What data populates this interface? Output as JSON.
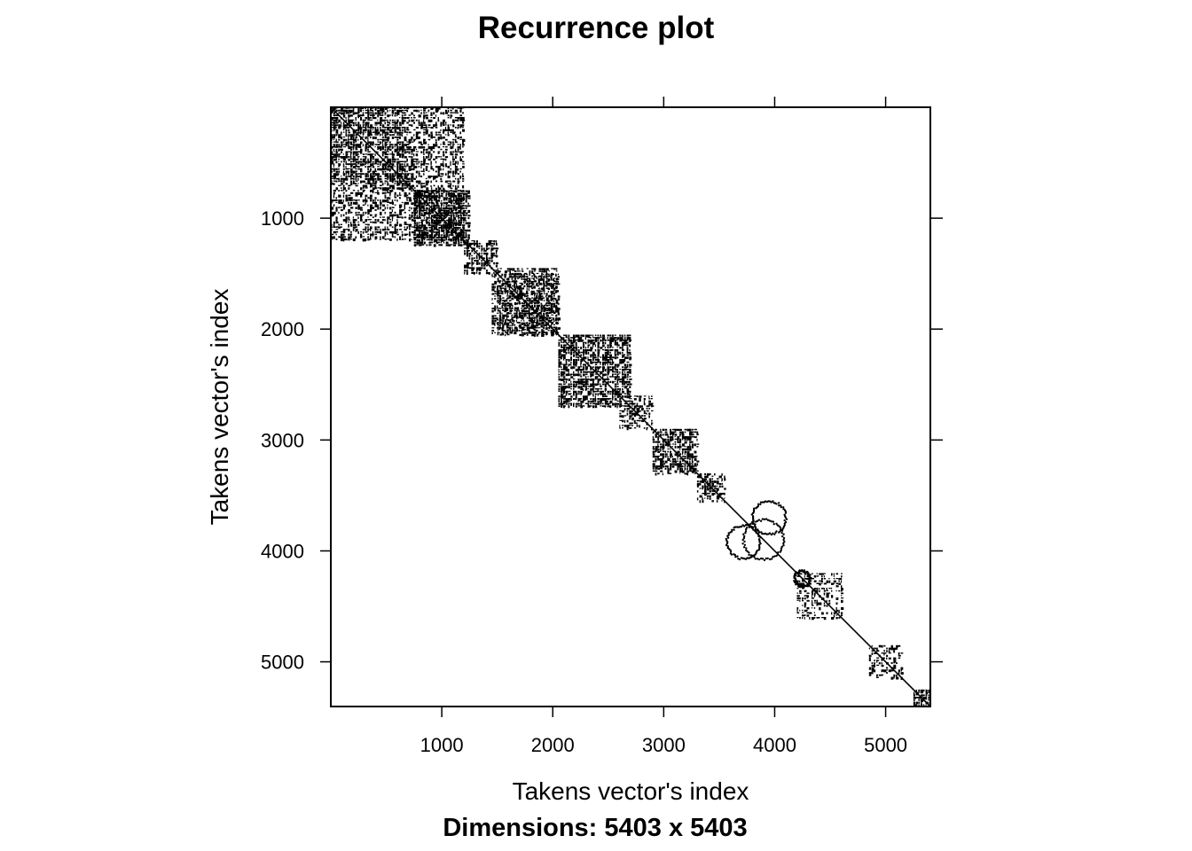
{
  "chart_data": {
    "type": "heatmap",
    "title": "Recurrence plot",
    "xlabel": "Takens vector's index",
    "ylabel": "Takens vector's index",
    "subtitle": "Dimensions: 5403 x 5403",
    "xlim": [
      0,
      5403
    ],
    "ylim": [
      5403,
      0
    ],
    "y_axis_direction": "downward",
    "x_ticks": [
      1000,
      2000,
      3000,
      4000,
      5000
    ],
    "y_ticks": [
      1000,
      2000,
      3000,
      4000,
      5000
    ],
    "x_tick_labels": [
      "1000",
      "2000",
      "3000",
      "4000",
      "5000"
    ],
    "y_tick_labels": [
      "1000",
      "2000",
      "3000",
      "4000",
      "5000"
    ],
    "grid": false,
    "legend": "none",
    "colors": {
      "recurrent": "#000000",
      "non_recurrent": "#ffffff"
    },
    "dense_blocks": [
      {
        "x": [
          0,
          700
        ],
        "y": [
          0,
          700
        ],
        "density": 0.55
      },
      {
        "x": [
          0,
          1200
        ],
        "y": [
          700,
          1200
        ],
        "density": 0.35
      },
      {
        "x": [
          700,
          1200
        ],
        "y": [
          0,
          700
        ],
        "density": 0.3
      },
      {
        "x": [
          750,
          1250
        ],
        "y": [
          750,
          1250
        ],
        "density": 0.6
      },
      {
        "x": [
          1200,
          1500
        ],
        "y": [
          1200,
          1500
        ],
        "density": 0.4
      },
      {
        "x": [
          1500,
          2050
        ],
        "y": [
          1450,
          2050
        ],
        "density": 0.65
      },
      {
        "x": [
          2050,
          2700
        ],
        "y": [
          2050,
          2700
        ],
        "density": 0.55
      },
      {
        "x": [
          2600,
          2900
        ],
        "y": [
          2600,
          2900
        ],
        "density": 0.35
      },
      {
        "x": [
          2900,
          3300
        ],
        "y": [
          2900,
          3300
        ],
        "density": 0.45
      },
      {
        "x": [
          3300,
          3550
        ],
        "y": [
          3300,
          3550
        ],
        "density": 0.4
      },
      {
        "x": [
          4200,
          4600
        ],
        "y": [
          4200,
          4600
        ],
        "density": 0.3
      },
      {
        "x": [
          4850,
          5150
        ],
        "y": [
          4850,
          5150
        ],
        "density": 0.3
      },
      {
        "x": [
          5250,
          5403
        ],
        "y": [
          5250,
          5403
        ],
        "density": 0.6
      }
    ],
    "ring_structures": [
      {
        "cx": 3900,
        "cy": 3900,
        "r": 180
      },
      {
        "cx": 3720,
        "cy": 3920,
        "r": 150
      },
      {
        "cx": 3950,
        "cy": 3700,
        "r": 150
      },
      {
        "cx": 4250,
        "cy": 4250,
        "r": 70
      }
    ],
    "diagonal": true
  }
}
